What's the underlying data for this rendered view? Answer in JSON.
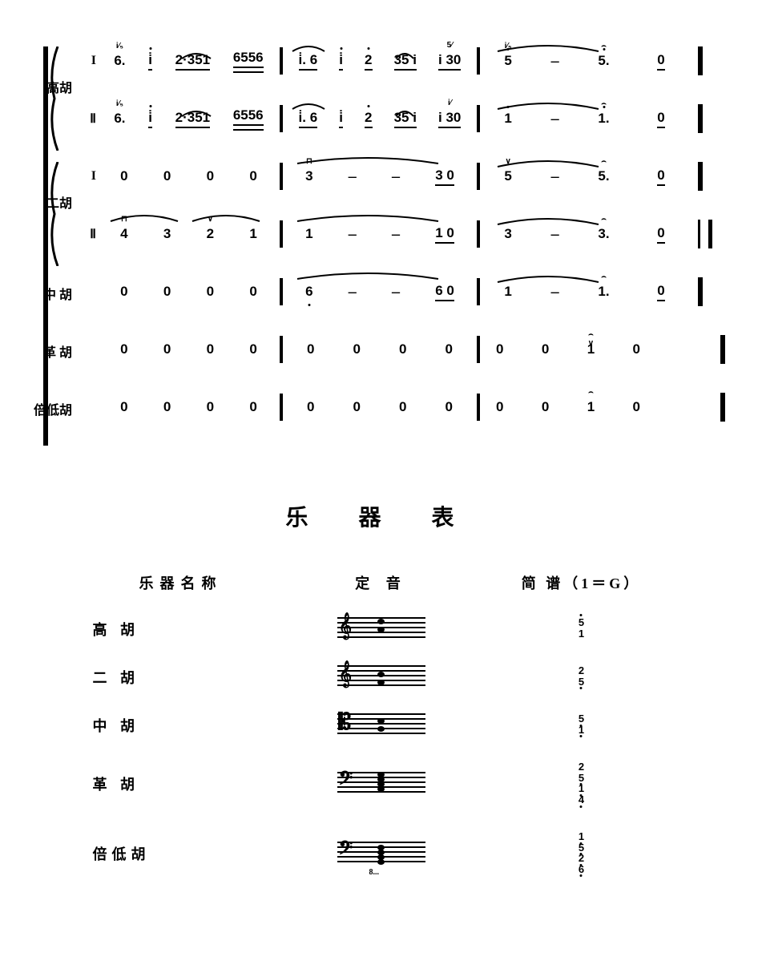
{
  "score": {
    "instruments": {
      "gaohu": "高胡",
      "erhu": "二胡",
      "zhonghu": "中 胡",
      "gehu": "革 胡",
      "beidihu": "倍低胡"
    },
    "part_labels": {
      "one": "I",
      "two": "Ⅱ"
    },
    "staves": [
      {
        "id": "gaohu1",
        "group": "gaohu",
        "part": "one",
        "m1": [
          "6.",
          "i̇",
          "2·351",
          "6556"
        ],
        "m2": [
          "i̇. 6",
          "i̇",
          "2",
          "35 i",
          "i 30"
        ],
        "m3": [
          "5",
          "–",
          "5."
        ],
        "m4": [
          "0"
        ]
      },
      {
        "id": "gaohu2",
        "group": "gaohu",
        "part": "two",
        "m1": [
          "6.",
          "i̇",
          "2·351",
          "6556"
        ],
        "m2": [
          "i̇. 6",
          "i̇",
          "2",
          "35 i",
          "i 30"
        ],
        "m3": [
          "1",
          "–",
          "1."
        ],
        "m4": [
          "0"
        ]
      },
      {
        "id": "erhu1",
        "group": "erhu",
        "part": "one",
        "m1": [
          "0",
          "0",
          "0",
          "0"
        ],
        "m2": [
          "3",
          "–",
          "–",
          "3 0"
        ],
        "m3": [
          "5",
          "–",
          "5."
        ],
        "m4": [
          "0"
        ]
      },
      {
        "id": "erhu2",
        "group": "erhu",
        "part": "two",
        "m1": [
          "4",
          "3",
          "2",
          "1"
        ],
        "m2": [
          "1",
          "–",
          "–",
          "1 0"
        ],
        "m3": [
          "3",
          "–",
          "3."
        ],
        "m4": [
          "0"
        ]
      },
      {
        "id": "zhonghu",
        "group": "zhonghu",
        "part": null,
        "m1": [
          "0",
          "0",
          "0",
          "0"
        ],
        "m2": [
          "6",
          "–",
          "–",
          "6 0"
        ],
        "m3": [
          "1",
          "–",
          "1."
        ],
        "m4": [
          "0"
        ]
      },
      {
        "id": "gehu",
        "group": "gehu",
        "part": null,
        "m1": [
          "0",
          "0",
          "0",
          "0"
        ],
        "m2": [
          "0",
          "0",
          "0",
          "0"
        ],
        "m3": [
          "0",
          "0",
          "1",
          "0"
        ],
        "m4": []
      },
      {
        "id": "beidihu",
        "group": "beidihu",
        "part": null,
        "m1": [
          "0",
          "0",
          "0",
          "0"
        ],
        "m2": [
          "0",
          "0",
          "0",
          "0"
        ],
        "m3": [
          "0",
          "0",
          "1",
          "0"
        ],
        "m4": []
      }
    ]
  },
  "table": {
    "title": "乐 器  表",
    "headers": {
      "name": "乐器名称",
      "tuning": "定  音",
      "jianpu": "简 谱（1＝G）"
    },
    "rows": [
      {
        "name": "高 胡",
        "clef": "treble",
        "notes_y": [
          4,
          14
        ],
        "jianpu": [
          "5",
          "1"
        ],
        "j_high": [
          0
        ],
        "j_low": []
      },
      {
        "name": "二 胡",
        "clef": "treble",
        "notes_y": [
          10,
          20
        ],
        "jianpu": [
          "2",
          "5"
        ],
        "j_high": [],
        "j_low": [
          1
        ]
      },
      {
        "name": "中 胡",
        "clef": "alto",
        "notes_y": [
          8,
          18
        ],
        "jianpu": [
          "5",
          "1"
        ],
        "j_high": [],
        "j_low": [
          0,
          1
        ]
      },
      {
        "name": "革 胡",
        "clef": "bass",
        "notes_y": [
          2,
          8,
          14,
          20
        ],
        "jianpu": [
          "2",
          "5",
          "1",
          "4"
        ],
        "j_high": [],
        "j_low": [
          1,
          2,
          3
        ]
      },
      {
        "name": "倍低胡",
        "clef": "bass",
        "notes_y": [
          6,
          12,
          18,
          24
        ],
        "jianpu": [
          "1",
          "5",
          "2",
          "6"
        ],
        "j_high": [],
        "j_low": [
          0,
          1,
          2,
          3
        ],
        "ottava": "8..."
      }
    ]
  },
  "colors": {
    "fg": "#000000",
    "bg": "#ffffff"
  }
}
